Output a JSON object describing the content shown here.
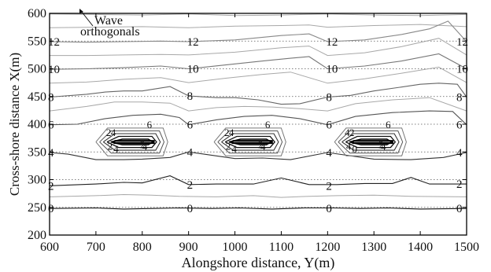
{
  "chart_data": {
    "type": "line",
    "subtype": "contour",
    "xlabel": "Alongshore distance, Y(m)",
    "ylabel": "Cross-shore distance X(m)",
    "xlim": [
      600,
      1500
    ],
    "ylim": [
      200,
      600
    ],
    "x_ticks": [
      600,
      700,
      800,
      900,
      1000,
      1100,
      1200,
      1300,
      1400,
      1500
    ],
    "y_ticks": [
      200,
      250,
      300,
      350,
      400,
      450,
      500,
      550,
      600
    ],
    "grid": "horizontal dotted",
    "annotation": {
      "text_line1": "Wave",
      "text_line2": "orthogonals"
    },
    "contour_label_x": [
      600,
      900,
      1200,
      1500
    ],
    "contours": [
      {
        "level": "0",
        "points": [
          [
            600,
            248
          ],
          [
            700,
            249
          ],
          [
            760,
            247
          ],
          [
            820,
            248
          ],
          [
            880,
            249
          ],
          [
            950,
            248
          ],
          [
            1010,
            249
          ],
          [
            1080,
            247
          ],
          [
            1150,
            249
          ],
          [
            1210,
            249
          ],
          [
            1270,
            248
          ],
          [
            1330,
            249
          ],
          [
            1400,
            247
          ],
          [
            1500,
            248
          ]
        ]
      },
      {
        "level": "2",
        "points": [
          [
            600,
            289
          ],
          [
            700,
            292
          ],
          [
            760,
            295
          ],
          [
            800,
            294
          ],
          [
            860,
            307
          ],
          [
            900,
            291
          ],
          [
            960,
            292
          ],
          [
            1040,
            292
          ],
          [
            1100,
            303
          ],
          [
            1160,
            291
          ],
          [
            1220,
            291
          ],
          [
            1280,
            293
          ],
          [
            1340,
            293
          ],
          [
            1380,
            304
          ],
          [
            1420,
            292
          ],
          [
            1500,
            292
          ]
        ]
      },
      {
        "level": "4",
        "points": [
          [
            600,
            349
          ],
          [
            640,
            346
          ],
          [
            700,
            336
          ],
          [
            760,
            336
          ],
          [
            800,
            337
          ],
          [
            860,
            340
          ],
          [
            900,
            350
          ],
          [
            1000,
            338
          ],
          [
            1060,
            339
          ],
          [
            1120,
            336
          ],
          [
            1200,
            349
          ],
          [
            1300,
            337
          ],
          [
            1380,
            336
          ],
          [
            1450,
            340
          ],
          [
            1500,
            349
          ]
        ]
      },
      {
        "level": "6",
        "points": [
          [
            600,
            399
          ],
          [
            660,
            400
          ],
          [
            720,
            410
          ],
          [
            780,
            416
          ],
          [
            840,
            418
          ],
          [
            880,
            412
          ],
          [
            900,
            399
          ],
          [
            960,
            408
          ],
          [
            1020,
            414
          ],
          [
            1080,
            416
          ],
          [
            1140,
            410
          ],
          [
            1200,
            399
          ],
          [
            1260,
            414
          ],
          [
            1340,
            421
          ],
          [
            1420,
            424
          ],
          [
            1470,
            423
          ],
          [
            1500,
            399
          ]
        ]
      },
      {
        "level": "8",
        "points": [
          [
            600,
            449
          ],
          [
            680,
            454
          ],
          [
            720,
            458
          ],
          [
            760,
            460
          ],
          [
            800,
            460
          ],
          [
            860,
            468
          ],
          [
            900,
            451
          ],
          [
            960,
            448
          ],
          [
            1000,
            448
          ],
          [
            1050,
            444
          ],
          [
            1100,
            436
          ],
          [
            1140,
            437
          ],
          [
            1200,
            449
          ],
          [
            1250,
            452
          ],
          [
            1300,
            460
          ],
          [
            1350,
            466
          ],
          [
            1400,
            472
          ],
          [
            1440,
            474
          ],
          [
            1480,
            472
          ],
          [
            1500,
            449
          ]
        ]
      },
      {
        "level": "10",
        "points": [
          [
            600,
            499
          ],
          [
            680,
            500
          ],
          [
            760,
            502
          ],
          [
            840,
            505
          ],
          [
            900,
            500
          ],
          [
            980,
            507
          ],
          [
            1060,
            514
          ],
          [
            1120,
            519
          ],
          [
            1160,
            522
          ],
          [
            1200,
            500
          ],
          [
            1280,
            505
          ],
          [
            1360,
            514
          ],
          [
            1440,
            527
          ],
          [
            1500,
            500
          ]
        ]
      },
      {
        "level": "12",
        "points": [
          [
            600,
            549
          ],
          [
            680,
            548
          ],
          [
            760,
            549
          ],
          [
            840,
            550
          ],
          [
            900,
            549
          ],
          [
            1000,
            552
          ],
          [
            1100,
            560
          ],
          [
            1160,
            563
          ],
          [
            1200,
            549
          ],
          [
            1280,
            552
          ],
          [
            1360,
            562
          ],
          [
            1420,
            572
          ],
          [
            1460,
            586
          ],
          [
            1500,
            549
          ]
        ]
      }
    ],
    "wave_rays": [
      {
        "points": [
          [
            600,
            599
          ],
          [
            700,
            598
          ],
          [
            800,
            597
          ],
          [
            900,
            599
          ],
          [
            1000,
            596
          ],
          [
            1100,
            597
          ],
          [
            1200,
            599
          ],
          [
            1300,
            597
          ],
          [
            1400,
            596
          ],
          [
            1500,
            598
          ]
        ]
      },
      {
        "points": [
          [
            600,
            574
          ],
          [
            700,
            575
          ],
          [
            800,
            576
          ],
          [
            900,
            574
          ],
          [
            1000,
            577
          ],
          [
            1100,
            578
          ],
          [
            1160,
            579
          ],
          [
            1200,
            575
          ],
          [
            1300,
            578
          ],
          [
            1400,
            580
          ],
          [
            1500,
            576
          ]
        ]
      },
      {
        "points": [
          [
            600,
            524
          ],
          [
            680,
            524
          ],
          [
            760,
            525
          ],
          [
            840,
            526
          ],
          [
            900,
            525
          ],
          [
            1000,
            530
          ],
          [
            1100,
            538
          ],
          [
            1160,
            541
          ],
          [
            1200,
            524
          ],
          [
            1280,
            529
          ],
          [
            1360,
            540
          ],
          [
            1440,
            555
          ],
          [
            1500,
            525
          ]
        ]
      },
      {
        "points": [
          [
            600,
            474
          ],
          [
            680,
            476
          ],
          [
            760,
            481
          ],
          [
            840,
            484
          ],
          [
            900,
            475
          ],
          [
            980,
            483
          ],
          [
            1060,
            490
          ],
          [
            1120,
            494
          ],
          [
            1200,
            474
          ],
          [
            1280,
            482
          ],
          [
            1360,
            492
          ],
          [
            1440,
            503
          ],
          [
            1500,
            475
          ]
        ]
      },
      {
        "points": [
          [
            600,
            424
          ],
          [
            680,
            432
          ],
          [
            740,
            440
          ],
          [
            800,
            440
          ],
          [
            860,
            438
          ],
          [
            900,
            424
          ],
          [
            960,
            430
          ],
          [
            1020,
            432
          ],
          [
            1080,
            431
          ],
          [
            1140,
            428
          ],
          [
            1200,
            424
          ],
          [
            1260,
            437
          ],
          [
            1340,
            444
          ],
          [
            1420,
            448
          ],
          [
            1500,
            424
          ]
        ]
      },
      {
        "points": [
          [
            600,
            269
          ],
          [
            700,
            271
          ],
          [
            760,
            273
          ],
          [
            820,
            272
          ],
          [
            880,
            270
          ],
          [
            960,
            269
          ],
          [
            1040,
            271
          ],
          [
            1100,
            268
          ],
          [
            1160,
            270
          ],
          [
            1220,
            271
          ],
          [
            1300,
            272
          ],
          [
            1380,
            270
          ],
          [
            1500,
            269
          ]
        ]
      }
    ],
    "structures": [
      {
        "x_start": 700,
        "x_end": 855,
        "level_labels": [
          "2",
          "4",
          "2",
          "4",
          "4",
          "2",
          "6"
        ]
      },
      {
        "x_start": 955,
        "x_end": 1110,
        "level_labels": [
          "2",
          "4",
          "2",
          "4",
          "4",
          "2",
          "6"
        ]
      },
      {
        "x_start": 1215,
        "x_end": 1370,
        "level_labels": [
          "4",
          "2",
          "4",
          "0",
          "4",
          "2",
          "6"
        ]
      }
    ]
  }
}
